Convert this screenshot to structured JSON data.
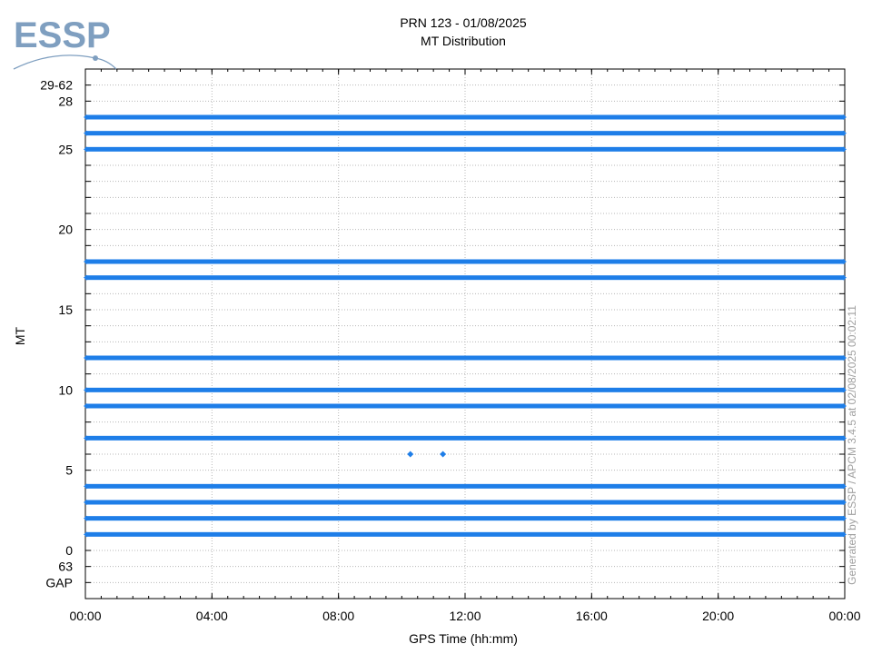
{
  "logo": {
    "text": "ESSP",
    "color": "#7f9fc0"
  },
  "credit": "Generated by ESSP / APCM 3.4.5 at 02/08/2025 00:02:11",
  "chart_data": {
    "type": "scatter",
    "title": "PRN 123 - 01/08/2025",
    "subtitle": "MT Distribution",
    "xlabel": "GPS Time (hh:mm)",
    "ylabel": "MT",
    "x_ticks": [
      "00:00",
      "04:00",
      "08:00",
      "12:00",
      "16:00",
      "20:00",
      "00:00"
    ],
    "x_range_hours": [
      0,
      24
    ],
    "y_categories": [
      "GAP",
      "63",
      "0",
      "1",
      "2",
      "3",
      "4",
      "5",
      "6",
      "7",
      "8",
      "9",
      "10",
      "11",
      "12",
      "13",
      "14",
      "15",
      "16",
      "17",
      "18",
      "19",
      "20",
      "21",
      "22",
      "23",
      "24",
      "25",
      "26",
      "27",
      "28",
      "29-62"
    ],
    "y_tick_labels": [
      "GAP",
      "63",
      "0",
      "5",
      "10",
      "15",
      "20",
      "25",
      "28",
      "29-62"
    ],
    "grid": true,
    "marker_color": "#1e7ee8",
    "continuous_messages": [
      "1",
      "2",
      "3",
      "4",
      "7",
      "9",
      "10",
      "12",
      "17",
      "18",
      "25",
      "26",
      "27"
    ],
    "sparse_points": [
      {
        "time_hours": 10.27,
        "mt": "6"
      },
      {
        "time_hours": 11.3,
        "mt": "6"
      }
    ]
  }
}
